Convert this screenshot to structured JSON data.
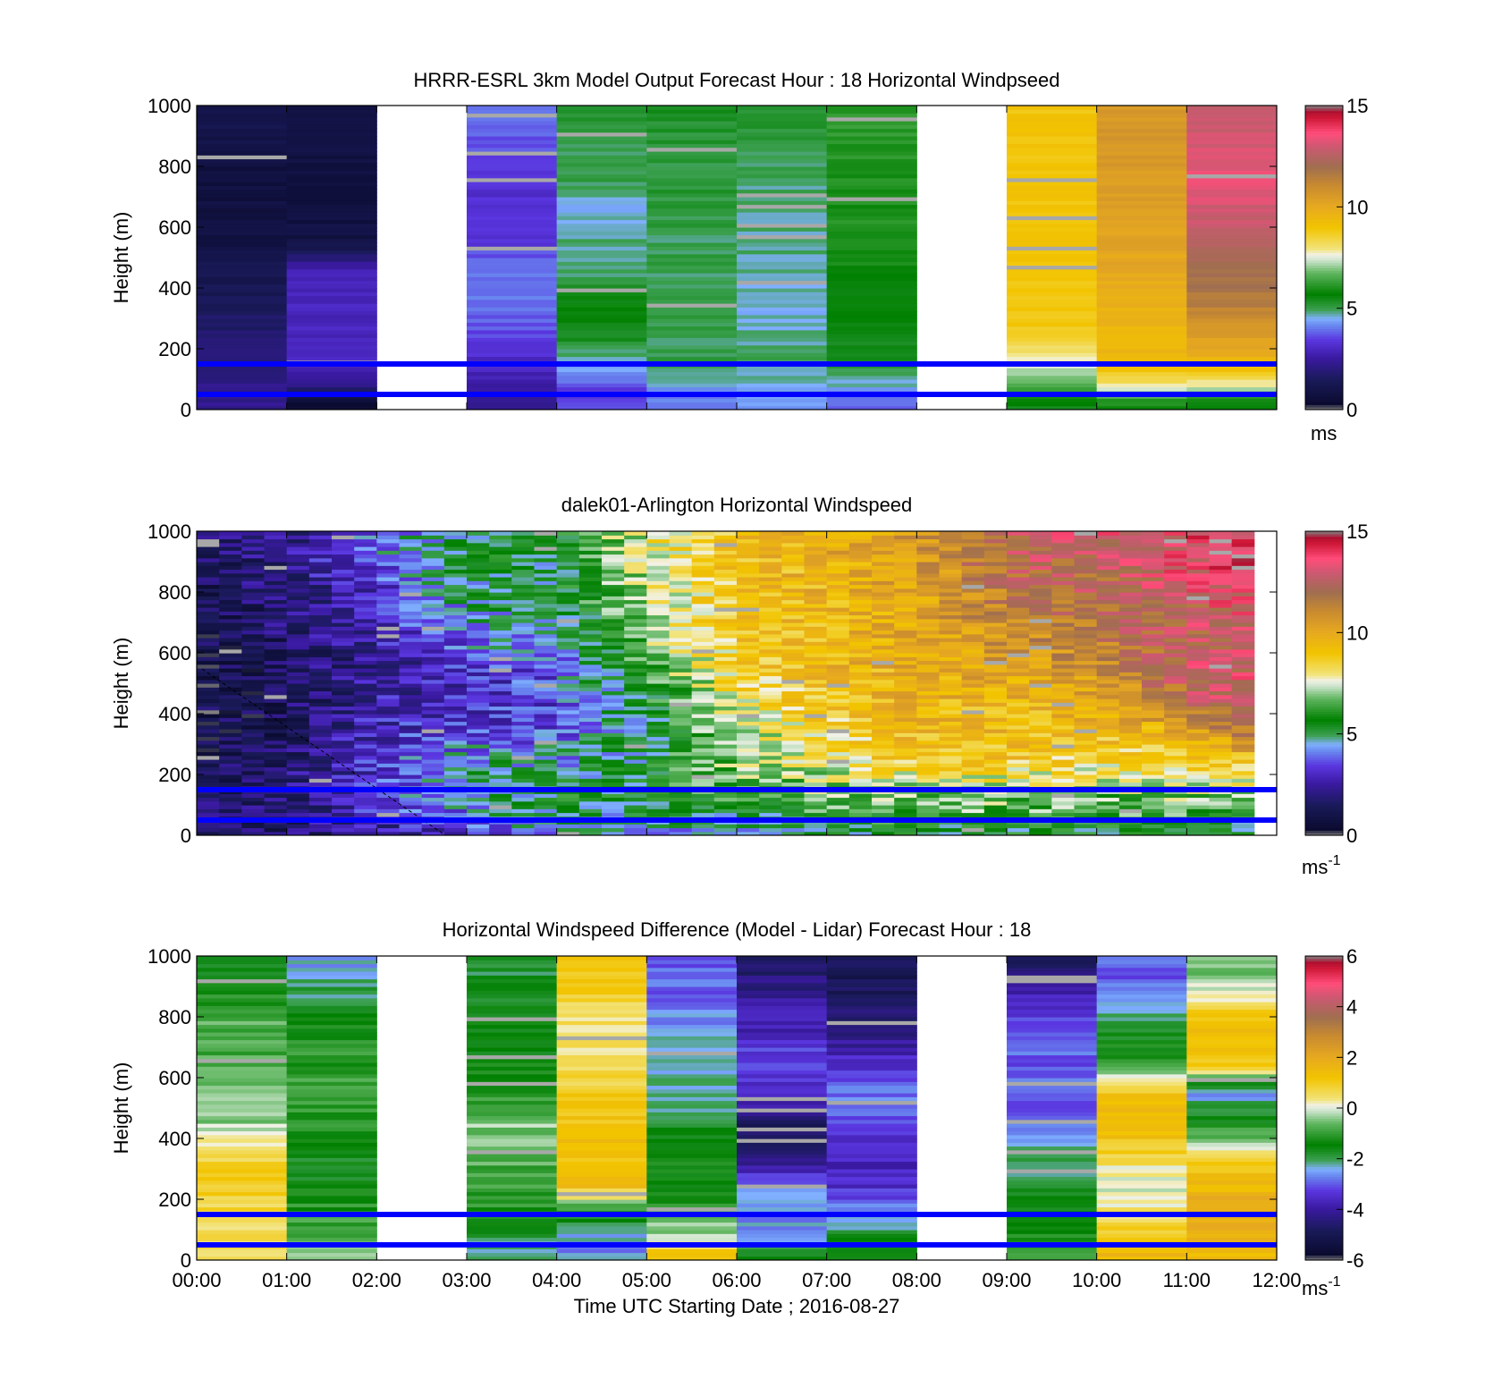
{
  "figure": {
    "xlabel": "Time UTC  Starting Date ; 2016-08-27",
    "x_ticks": [
      "00:00",
      "01:00",
      "02:00",
      "03:00",
      "04:00",
      "05:00",
      "06:00",
      "07:00",
      "08:00",
      "09:00",
      "10:00",
      "11:00",
      "12:00"
    ],
    "y_ticks": [
      "0",
      "200",
      "400",
      "600",
      "800",
      "1000"
    ],
    "ylabel": "Height (m)"
  },
  "colorbar_stops": [
    [
      0.0,
      "#808080"
    ],
    [
      0.02,
      "#0b0b30"
    ],
    [
      0.1,
      "#1a1a5a"
    ],
    [
      0.17,
      "#3a1aa0"
    ],
    [
      0.23,
      "#5a36e0"
    ],
    [
      0.28,
      "#6a8cf0"
    ],
    [
      0.3,
      "#80b0ff"
    ],
    [
      0.33,
      "#3ca050"
    ],
    [
      0.38,
      "#008000"
    ],
    [
      0.45,
      "#5fb55f"
    ],
    [
      0.49,
      "#c7e2c7"
    ],
    [
      0.51,
      "#f2f2e8"
    ],
    [
      0.53,
      "#f2e37a"
    ],
    [
      0.6,
      "#f2c400"
    ],
    [
      0.67,
      "#e6a820"
    ],
    [
      0.74,
      "#c88a30"
    ],
    [
      0.8,
      "#a06e50"
    ],
    [
      0.86,
      "#c85a70"
    ],
    [
      0.91,
      "#ff4d7a"
    ],
    [
      0.96,
      "#d01838"
    ],
    [
      0.98,
      "#b01030"
    ],
    [
      1.0,
      "#808080"
    ]
  ],
  "chart_data": [
    {
      "type": "heatmap",
      "title": "HRRR-ESRL 3km Model Output   Forecast Hour : 18 Horizontal Windpseed",
      "xlabel": "",
      "ylabel": "Height (m)",
      "xlim": [
        0,
        12
      ],
      "ylim": [
        0,
        1000
      ],
      "colorbar": {
        "range": [
          0,
          15
        ],
        "ticks": [
          "0",
          "5",
          "10",
          "15"
        ],
        "unit": "ms"
      },
      "reference_lines_m": [
        150,
        50
      ],
      "time_bins_hours": [
        0,
        1,
        2,
        3,
        4,
        5,
        6,
        7,
        8,
        9,
        10,
        11
      ],
      "height_levels_m": [
        25,
        75,
        150,
        250,
        350,
        450,
        550,
        650,
        750,
        850,
        950
      ],
      "values": [
        [
          2.3,
          2.2,
          2.0,
          1.8,
          1.5,
          1.2,
          0.9,
          0.8,
          0.7,
          0.9,
          1.1
        ],
        [
          0.5,
          2.0,
          3.0,
          3.0,
          3.0,
          3.0,
          0.9,
          0.8,
          0.8,
          0.9,
          0.9
        ],
        [
          null,
          null,
          null,
          null,
          null,
          null,
          null,
          null,
          null,
          null,
          null
        ],
        [
          2.2,
          2.6,
          3.0,
          3.6,
          4.0,
          4.0,
          3.4,
          3.2,
          3.3,
          3.6,
          3.9
        ],
        [
          3.5,
          3.6,
          4.5,
          5.5,
          5.7,
          4.9,
          4.8,
          4.5,
          5.0,
          5.0,
          5.3
        ],
        [
          4.0,
          4.4,
          5.0,
          5.0,
          5.0,
          5.0,
          5.0,
          5.1,
          5.2,
          5.1,
          5.3
        ],
        [
          4.2,
          4.6,
          4.9,
          4.7,
          4.6,
          4.8,
          4.8,
          4.8,
          4.9,
          5.1,
          5.2
        ],
        [
          3.8,
          4.5,
          5.3,
          5.6,
          5.7,
          5.8,
          6.0,
          6.0,
          6.0,
          6.1,
          6.2
        ],
        [
          null,
          null,
          null,
          null,
          null,
          null,
          null,
          null,
          null,
          null,
          null
        ],
        [
          5.5,
          6.5,
          7.6,
          8.8,
          8.9,
          9.0,
          9.0,
          9.0,
          9.0,
          9.0,
          9.0
        ],
        [
          6.0,
          7.8,
          9.5,
          9.5,
          9.7,
          10.0,
          10.2,
          10.4,
          10.5,
          10.6,
          10.6
        ],
        [
          5.5,
          7.5,
          9.5,
          10.5,
          11.5,
          12.0,
          12.6,
          13.0,
          13.3,
          13.2,
          12.8
        ]
      ]
    },
    {
      "type": "heatmap",
      "title": "dalek01-Arlington  Horizontal Windspeed",
      "xlabel": "",
      "ylabel": "Height (m)",
      "xlim": [
        0,
        12
      ],
      "ylim": [
        0,
        1000
      ],
      "colorbar": {
        "range": [
          0,
          15
        ],
        "ticks": [
          "0",
          "5",
          "10",
          "15"
        ],
        "unit": "ms",
        "unit_sup": "-1"
      },
      "reference_lines_m": [
        150,
        50
      ],
      "time_bin_minutes": 15,
      "height_levels_m": [
        25,
        75,
        150,
        250,
        350,
        450,
        550,
        650,
        750,
        850,
        950
      ],
      "profile_times_h": [
        0,
        1,
        2,
        3,
        4,
        5,
        6,
        7,
        8,
        9,
        10,
        11,
        12
      ],
      "profile_values": [
        [
          1.5,
          1.5,
          1.4,
          1.2,
          1.0,
          0.9,
          1.0,
          1.1,
          1.2,
          1.4,
          1.6
        ],
        [
          1.7,
          1.8,
          1.9,
          1.7,
          1.5,
          1.4,
          1.5,
          1.7,
          1.9,
          2.0,
          2.2
        ],
        [
          2.5,
          3.0,
          3.5,
          3.3,
          3.0,
          2.6,
          2.4,
          2.6,
          3.0,
          3.5,
          4.0
        ],
        [
          3.5,
          4.2,
          4.8,
          4.5,
          3.5,
          3.0,
          3.3,
          4.0,
          4.8,
          5.0,
          5.2
        ],
        [
          4.5,
          5.0,
          5.6,
          4.5,
          3.6,
          3.4,
          3.8,
          4.8,
          5.1,
          5.2,
          5.4
        ],
        [
          4.5,
          5.0,
          5.6,
          5.2,
          4.8,
          5.5,
          6.2,
          6.8,
          7.2,
          7.5,
          7.8
        ],
        [
          4.5,
          5.5,
          6.5,
          7.2,
          7.5,
          8.0,
          8.5,
          8.8,
          9.0,
          9.0,
          9.1
        ],
        [
          5.2,
          6.0,
          7.0,
          7.6,
          8.4,
          9.0,
          9.3,
          9.4,
          9.5,
          9.7,
          9.8
        ],
        [
          5.5,
          6.5,
          7.2,
          9.0,
          9.5,
          9.6,
          9.8,
          10.0,
          10.0,
          10.2,
          10.5
        ],
        [
          5.5,
          6.5,
          7.2,
          9.0,
          9.3,
          9.6,
          10.2,
          10.8,
          11.5,
          12.0,
          12.5
        ],
        [
          5.5,
          6.2,
          7.0,
          8.5,
          9.3,
          10.0,
          10.8,
          11.5,
          12.0,
          12.3,
          12.8
        ],
        [
          5.2,
          6.3,
          7.2,
          8.5,
          10.0,
          12.0,
          12.8,
          12.5,
          12.5,
          13.0,
          13.5
        ],
        [
          5.0,
          6.5,
          7.5,
          9.5,
          12.5,
          13.5,
          13.0,
          13.0,
          13.5,
          14.0,
          14.0
        ]
      ]
    },
    {
      "type": "heatmap",
      "title": "Horizontal Windspeed Difference (Model - Lidar) Forecast Hour : 18",
      "xlabel": "Time UTC  Starting Date ; 2016-08-27",
      "ylabel": "Height (m)",
      "xlim": [
        0,
        12
      ],
      "ylim": [
        0,
        1000
      ],
      "colorbar": {
        "range": [
          -6,
          6
        ],
        "ticks": [
          "-6",
          "-4",
          "-2",
          "0",
          "2",
          "4",
          "6"
        ],
        "unit": "ms",
        "unit_sup": "-1"
      },
      "reference_lines_m": [
        150,
        50
      ],
      "time_bins_hours": [
        0,
        1,
        2,
        3,
        4,
        5,
        6,
        7,
        8,
        9,
        10,
        11
      ],
      "height_levels_m": [
        25,
        75,
        150,
        250,
        350,
        450,
        550,
        650,
        750,
        850,
        950
      ],
      "values": [
        [
          0.6,
          0.5,
          0.6,
          1.0,
          0.6,
          -0.3,
          -0.5,
          -0.9,
          -0.7,
          -1.0,
          -1.7
        ],
        [
          -0.5,
          -0.8,
          -1.0,
          -1.5,
          -1.6,
          -1.2,
          -1.0,
          -1.0,
          -1.3,
          -1.8,
          -2.4
        ],
        [
          null,
          null,
          null,
          null,
          null,
          null,
          null,
          null,
          null,
          null,
          null
        ],
        [
          -2.3,
          -2.0,
          -1.2,
          -1.0,
          -0.6,
          -0.4,
          -1.2,
          -1.4,
          -1.5,
          -1.6,
          -1.8
        ],
        [
          -2.6,
          -2.4,
          -1.5,
          1.5,
          1.3,
          1.2,
          1.0,
          0.5,
          0.3,
          0.8,
          1.2
        ],
        [
          1.2,
          -0.2,
          -0.8,
          -1.3,
          -1.4,
          -1.8,
          -2.2,
          -2.4,
          -2.5,
          -2.8,
          -3.0
        ],
        [
          -1.5,
          -2.4,
          -2.6,
          -2.8,
          -4.6,
          -4.8,
          -3.5,
          -3.0,
          -3.7,
          -4.0,
          -4.6
        ],
        [
          -1.3,
          -1.8,
          -2.5,
          -3.5,
          -3.7,
          -3.0,
          -2.8,
          -3.5,
          -4.3,
          -4.8,
          -5.0
        ],
        [
          null,
          null,
          null,
          null,
          null,
          null,
          null,
          null,
          null,
          null,
          null
        ],
        [
          -1.0,
          -1.3,
          -1.6,
          -1.8,
          -2.3,
          -2.8,
          -3.0,
          -3.0,
          -2.9,
          -3.6,
          -4.7
        ],
        [
          1.5,
          1.3,
          0.5,
          -0.2,
          0.8,
          1.5,
          1.2,
          -1.0,
          -1.7,
          -2.5,
          -3.0
        ],
        [
          1.6,
          1.8,
          2.0,
          1.5,
          0.8,
          -1.5,
          -2.5,
          1.2,
          1.5,
          0.5,
          -0.6
        ]
      ]
    }
  ]
}
